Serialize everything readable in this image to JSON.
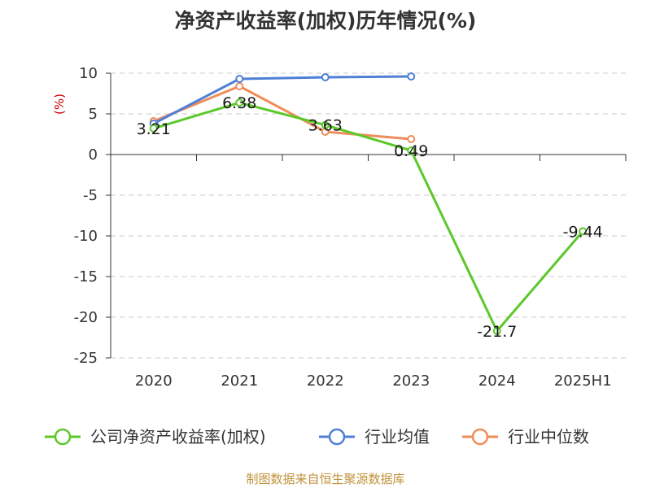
{
  "chart_data": {
    "type": "line",
    "title": "净资产收益率(加权)历年情况(%)",
    "unit_label": "(%)",
    "categories": [
      "2020",
      "2021",
      "2022",
      "2023",
      "2024",
      "2025H1"
    ],
    "yticks": [
      10,
      5,
      0,
      -5,
      -10,
      -15,
      -20,
      -25
    ],
    "ylim": [
      -25,
      10
    ],
    "grid": true,
    "legend_position": "bottom",
    "series": [
      {
        "name": "公司净资产收益率(加权)",
        "color": "#5cc82a",
        "values": [
          3.21,
          6.38,
          3.63,
          0.49,
          -21.7,
          -9.44
        ],
        "labels": [
          "3.21",
          "6.38",
          "3.63",
          "0.49",
          "-21.7",
          "-9.44"
        ]
      },
      {
        "name": "行业均值",
        "color": "#4f7fd6",
        "values": [
          3.8,
          9.3,
          9.5,
          9.6,
          null,
          null
        ]
      },
      {
        "name": "行业中位数",
        "color": "#f08c58",
        "values": [
          4.1,
          8.4,
          2.8,
          1.9,
          null,
          null
        ]
      }
    ]
  },
  "footer": {
    "source": "制图数据来自恒生聚源数据库"
  }
}
